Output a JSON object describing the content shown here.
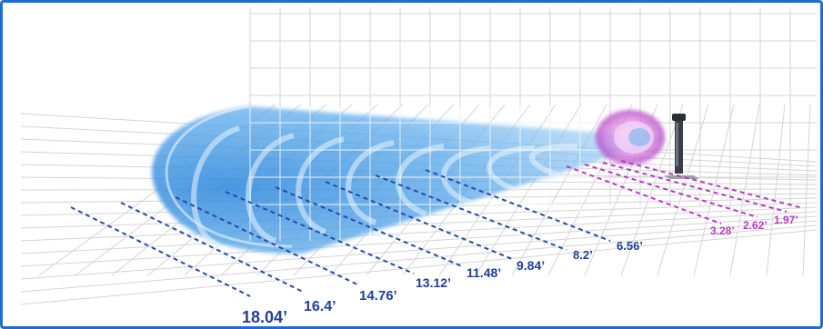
{
  "colors": {
    "frame": "#1a6fd6",
    "blue_label": "#1f3f9a",
    "purple_label": "#b53cc0",
    "airflow": "#4aa3e8",
    "grid": "#d4d4d4"
  },
  "icons": {
    "device": "tower-fan-icon",
    "source": "purple-air-source-ring"
  },
  "distances": {
    "blue": [
      "18.04’",
      "16.4’",
      "14.76’",
      "13.12’",
      "11.48’",
      "9.84’",
      "8.2’",
      "6.56’"
    ],
    "purple": [
      "3.28’",
      "2.62’",
      "1.97’"
    ]
  }
}
